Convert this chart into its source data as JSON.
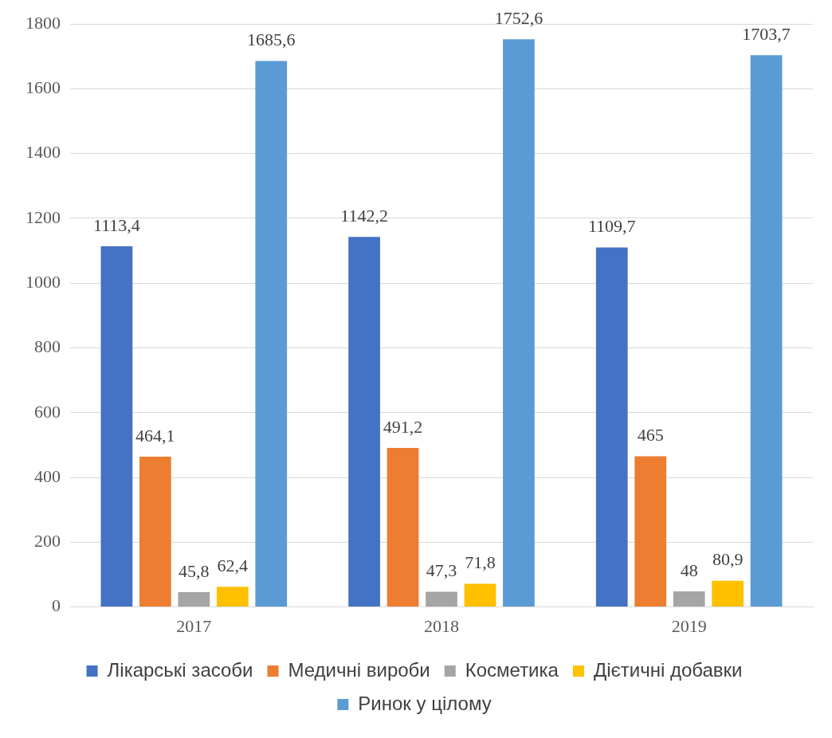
{
  "chart_data": {
    "type": "bar",
    "categories": [
      "2017",
      "2018",
      "2019"
    ],
    "series": [
      {
        "name": "Лікарські засоби",
        "color": "#4472c4",
        "values": [
          1113.4,
          1142.2,
          1109.7
        ],
        "value_labels": [
          "1113,4",
          "1142,2",
          "1109,7"
        ]
      },
      {
        "name": "Медичні вироби",
        "color": "#ed7d31",
        "values": [
          464.1,
          491.2,
          465
        ],
        "value_labels": [
          "464,1",
          "491,2",
          "465"
        ]
      },
      {
        "name": "Косметика",
        "color": "#a5a5a5",
        "values": [
          45.8,
          47.3,
          48
        ],
        "value_labels": [
          "45,8",
          "47,3",
          "48"
        ]
      },
      {
        "name": "Дієтичні добавки",
        "color": "#ffc000",
        "values": [
          62.4,
          71.8,
          80.9
        ],
        "value_labels": [
          "62,4",
          "71,8",
          "80,9"
        ]
      },
      {
        "name": "Ринок у цілому",
        "color": "#5b9bd5",
        "values": [
          1685.6,
          1752.6,
          1703.7
        ],
        "value_labels": [
          "1685,6",
          "1752,6",
          "1703,7"
        ]
      }
    ],
    "ylim": [
      0,
      1800
    ],
    "yticks": [
      0,
      200,
      400,
      600,
      800,
      1000,
      1200,
      1400,
      1600,
      1800
    ],
    "grid": "y",
    "legend": "bottom"
  }
}
